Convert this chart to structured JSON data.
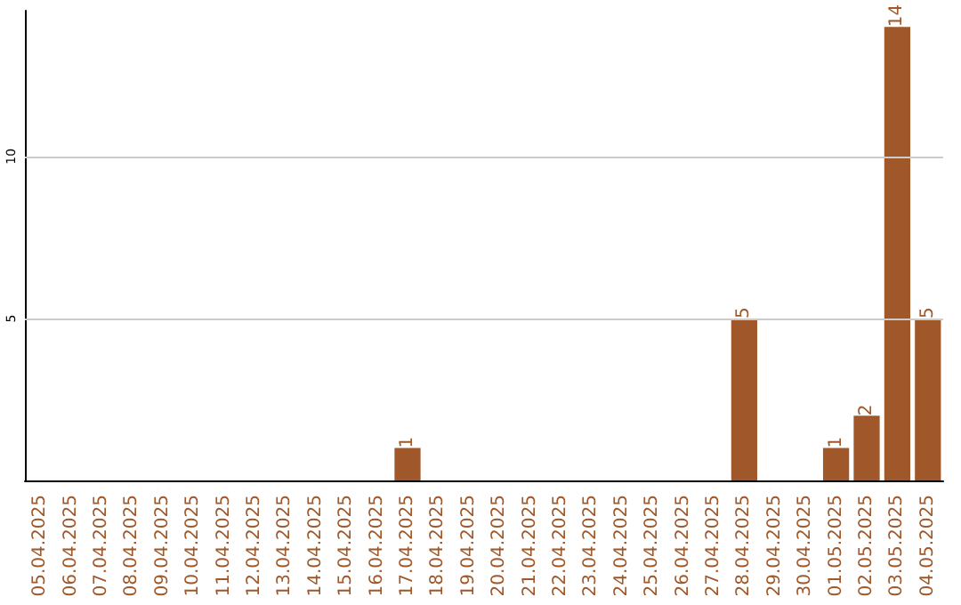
{
  "chart_data": {
    "type": "bar",
    "categories": [
      "05.04.2025",
      "06.04.2025",
      "07.04.2025",
      "08.04.2025",
      "09.04.2025",
      "10.04.2025",
      "11.04.2025",
      "12.04.2025",
      "13.04.2025",
      "14.04.2025",
      "15.04.2025",
      "16.04.2025",
      "17.04.2025",
      "18.04.2025",
      "19.04.2025",
      "20.04.2025",
      "21.04.2025",
      "22.04.2025",
      "23.04.2025",
      "24.04.2025",
      "25.04.2025",
      "26.04.2025",
      "27.04.2025",
      "28.04.2025",
      "29.04.2025",
      "30.04.2025",
      "01.05.2025",
      "02.05.2025",
      "03.05.2025",
      "04.05.2025"
    ],
    "values": [
      0,
      0,
      0,
      0,
      0,
      0,
      0,
      0,
      0,
      0,
      0,
      0,
      1,
      0,
      0,
      0,
      0,
      0,
      0,
      0,
      0,
      0,
      0,
      5,
      0,
      0,
      1,
      2,
      14,
      5
    ],
    "value_labels": [
      null,
      null,
      null,
      null,
      null,
      null,
      null,
      null,
      null,
      null,
      null,
      null,
      "1",
      null,
      null,
      null,
      null,
      null,
      null,
      null,
      null,
      null,
      null,
      "5",
      null,
      null,
      "1",
      "2",
      "14",
      "5"
    ],
    "color": "#a0582a",
    "ylim": [
      0,
      14.5
    ],
    "yticks": [
      5,
      10
    ],
    "grid": "y"
  }
}
